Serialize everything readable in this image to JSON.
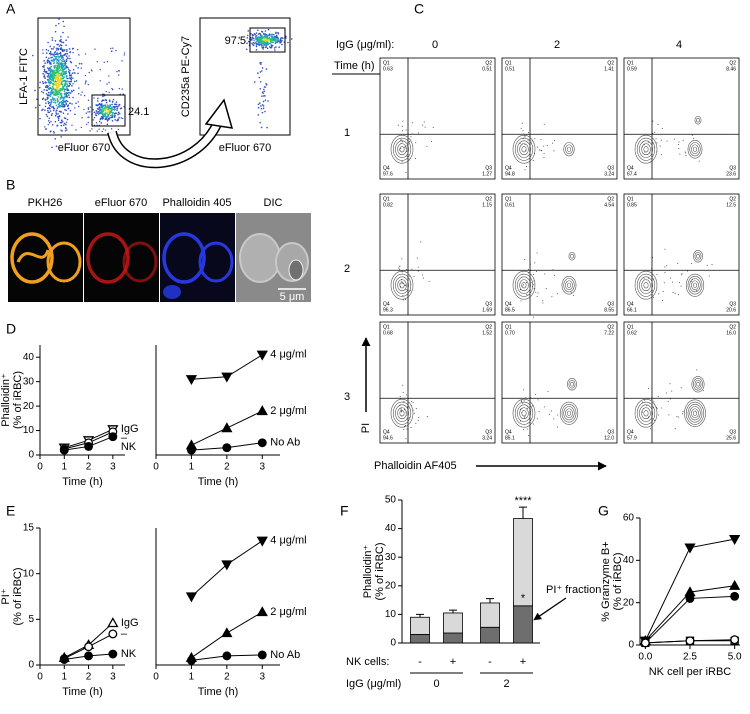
{
  "figure": {
    "panel_a": {
      "label": "A",
      "plots": [
        {
          "ylabel": "LFA-1 FITC",
          "xlabel": "eFluor 670",
          "gate": 24.1
        },
        {
          "ylabel": "CD235a PE-Cy7",
          "xlabel": "eFluor 670",
          "gate": 97.5
        }
      ]
    },
    "panel_b": {
      "label": "B",
      "channels": [
        "PKH26",
        "eFluor 670",
        "Phalloidin 405",
        "DIC"
      ],
      "scale_bar": "5 μm"
    },
    "panel_c": {
      "label": "C",
      "igg_label": "IgG (μg/ml):",
      "igg_levels": [
        "0",
        "2",
        "4"
      ],
      "time_label": "Time (h)",
      "times": [
        "1",
        "2",
        "3"
      ],
      "quadrant_names": [
        "Q1",
        "Q2",
        "Q3",
        "Q4"
      ],
      "quadrants": [
        [
          [
            "0.63",
            "0.51",
            "1.27",
            "97.6"
          ],
          [
            "0.51",
            "1.41",
            "3.24",
            "94.8"
          ],
          [
            "0.59",
            "8.46",
            "23.6",
            "67.4"
          ]
        ],
        [
          [
            "0.82",
            "1.15",
            "1.69",
            "96.3"
          ],
          [
            "0.61",
            "4.54",
            "8.55",
            "86.5"
          ],
          [
            "0.85",
            "12.5",
            "20.6",
            "66.1"
          ]
        ],
        [
          [
            "0.68",
            "1.52",
            "3.24",
            "94.6"
          ],
          [
            "0.70",
            "7.22",
            "12.0",
            "85.1"
          ],
          [
            "0.62",
            "16.0",
            "25.6",
            "57.9"
          ]
        ]
      ],
      "ylabel": "PI",
      "xlabel": "Phalloidin AF405"
    }
  },
  "chart_data": [
    {
      "type": "line",
      "panel_label": "D",
      "ylabel": [
        "Phalloidin⁺",
        "(% of iRBC)"
      ],
      "xlabel": "Time (h)",
      "x": [
        1,
        2,
        3
      ],
      "xlim": [
        0,
        3.5
      ],
      "xticks": [
        0,
        1,
        2,
        3
      ],
      "ylim": [
        0,
        45
      ],
      "yticks": [
        0,
        10,
        20,
        30,
        40
      ],
      "series": [
        {
          "name": "IgG",
          "color": "#000000",
          "marker": "triangle-down",
          "fill": "open",
          "values": [
            3,
            6,
            10.5
          ]
        },
        {
          "name": "–",
          "color": "#000000",
          "marker": "circle",
          "fill": "open",
          "values": [
            2.5,
            5,
            9.5
          ]
        },
        {
          "name": "NK",
          "color": "#000000",
          "marker": "circle",
          "fill": "filled",
          "values": [
            2,
            3.5,
            7.5
          ]
        }
      ]
    },
    {
      "type": "line",
      "xlabel": "Time (h)",
      "x": [
        1,
        2,
        3
      ],
      "xlim": [
        0,
        3.5
      ],
      "xticks": [
        0,
        1,
        2,
        3
      ],
      "ylim": [
        0,
        45
      ],
      "series": [
        {
          "name": "4 μg/ml",
          "color": "#000000",
          "marker": "triangle-down",
          "fill": "filled",
          "values": [
            31,
            32,
            41
          ]
        },
        {
          "name": "2 μg/ml",
          "color": "#000000",
          "marker": "triangle-up",
          "fill": "filled",
          "values": [
            4,
            11,
            18
          ]
        },
        {
          "name": "No Ab",
          "color": "#000000",
          "marker": "circle",
          "fill": "filled",
          "values": [
            2,
            3,
            5
          ]
        }
      ]
    },
    {
      "type": "line",
      "panel_label": "E",
      "ylabel": [
        "PI⁺",
        "(% of iRBC)"
      ],
      "xlabel": "Time (h)",
      "x": [
        1,
        2,
        3
      ],
      "xlim": [
        0,
        3.5
      ],
      "xticks": [
        0,
        1,
        2,
        3
      ],
      "ylim": [
        0,
        15
      ],
      "yticks": [
        0,
        5,
        10,
        15
      ],
      "series": [
        {
          "name": "IgG",
          "color": "#000000",
          "marker": "triangle-up",
          "fill": "open",
          "values": [
            0.8,
            2.2,
            4.6
          ]
        },
        {
          "name": "–",
          "color": "#000000",
          "marker": "circle",
          "fill": "open",
          "values": [
            0.7,
            2,
            3.4
          ]
        },
        {
          "name": "NK",
          "color": "#000000",
          "marker": "circle",
          "fill": "filled",
          "values": [
            0.6,
            1,
            1.2
          ]
        }
      ]
    },
    {
      "type": "line",
      "xlabel": "Time (h)",
      "x": [
        1,
        2,
        3
      ],
      "xlim": [
        0,
        3.5
      ],
      "xticks": [
        0,
        1,
        2,
        3
      ],
      "ylim": [
        0,
        15
      ],
      "series": [
        {
          "name": "4 μg/ml",
          "color": "#000000",
          "marker": "triangle-down",
          "fill": "filled",
          "values": [
            7.5,
            11,
            13.6
          ]
        },
        {
          "name": "2 μg/ml",
          "color": "#000000",
          "marker": "triangle-up",
          "fill": "filled",
          "values": [
            0.8,
            3.5,
            5.8
          ]
        },
        {
          "name": "No Ab",
          "color": "#000000",
          "marker": "circle",
          "fill": "filled",
          "values": [
            0.5,
            1,
            1.1
          ]
        }
      ]
    },
    {
      "type": "bar",
      "panel_label": "F",
      "stacked": true,
      "ylabel": [
        "Phalloidin⁺",
        "(% of iRBC)"
      ],
      "row_label": "NK cells:",
      "categories": [
        "-",
        "+",
        "-",
        "+"
      ],
      "group_label": "IgG (μg/ml)",
      "groups": [
        "0",
        "2"
      ],
      "ylim": [
        0,
        50
      ],
      "yticks": [
        0,
        10,
        20,
        30,
        40,
        50
      ],
      "series": [
        {
          "name": "PI⁺ fraction",
          "color": "#6e6e6e",
          "values": [
            3,
            3.5,
            5.5,
            13
          ]
        },
        {
          "color": "#d9d9d9",
          "values": [
            6,
            7,
            8.5,
            30.5
          ],
          "errors": [
            1,
            1,
            1.5,
            4
          ]
        }
      ],
      "annotations": [
        "****",
        "*"
      ]
    },
    {
      "type": "line",
      "panel_label": "G",
      "ylabel": [
        "% Granzyme B+",
        "(% of iRBC)"
      ],
      "xlabel": "NK cell per iRBC",
      "x": [
        0,
        2.5,
        5
      ],
      "xlim": [
        -0.3,
        5.3
      ],
      "xticks": [
        {
          "value": 0,
          "label": "0.0"
        },
        {
          "value": 2.5,
          "label": "2.5"
        },
        {
          "value": 5,
          "label": "5.0"
        }
      ],
      "ylim": [
        0,
        60
      ],
      "yticks": [
        0,
        20,
        40,
        60
      ],
      "series": [
        {
          "color": "#000000",
          "marker": "triangle-down",
          "fill": "filled",
          "values": [
            2,
            46,
            50
          ]
        },
        {
          "color": "#000000",
          "marker": "triangle-up",
          "fill": "filled",
          "values": [
            2,
            25,
            28
          ]
        },
        {
          "color": "#000000",
          "marker": "circle",
          "fill": "filled",
          "values": [
            1,
            22,
            23
          ]
        },
        {
          "color": "#000000",
          "marker": "square",
          "fill": "open",
          "values": [
            1,
            2,
            2
          ]
        },
        {
          "color": "#000000",
          "marker": "circle",
          "fill": "open",
          "values": [
            1,
            2,
            2.5
          ]
        }
      ]
    }
  ]
}
